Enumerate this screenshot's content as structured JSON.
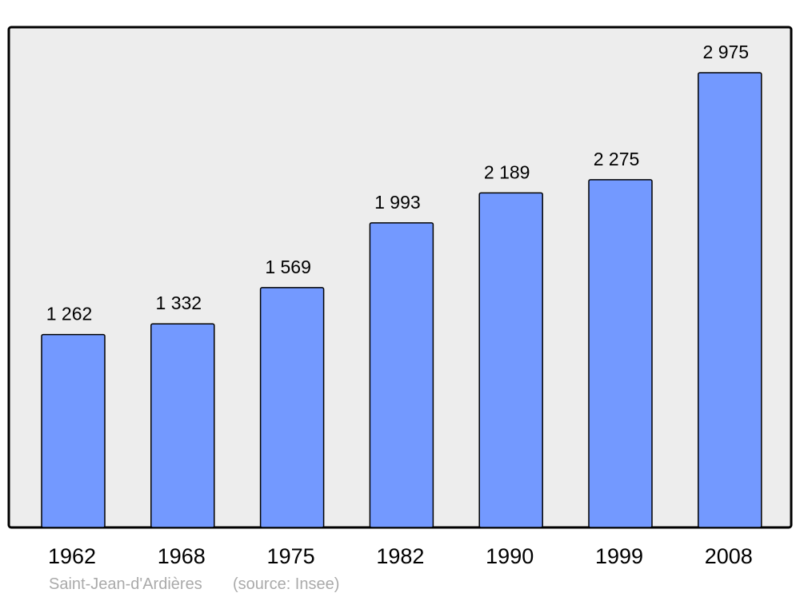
{
  "chart_data": {
    "type": "bar",
    "title": "",
    "xlabel": "",
    "ylabel": "",
    "categories": [
      "1962",
      "1968",
      "1975",
      "1982",
      "1990",
      "1999",
      "2008"
    ],
    "values": [
      1262,
      1332,
      1569,
      1993,
      2189,
      2275,
      2975
    ],
    "value_labels": [
      "1 262",
      "1 332",
      "1 569",
      "1 993",
      "2 189",
      "2 275",
      "2 975"
    ],
    "ylim": [
      0,
      3273
    ],
    "grid": false,
    "legend": "none",
    "colors": {
      "bar": "#7399ff",
      "plot_background": "#ededed",
      "border": "#000000",
      "footer_text": "#aaaaaa"
    }
  },
  "footer": {
    "place": "Saint-Jean-d'Ardières",
    "source": "(source: Insee)"
  }
}
